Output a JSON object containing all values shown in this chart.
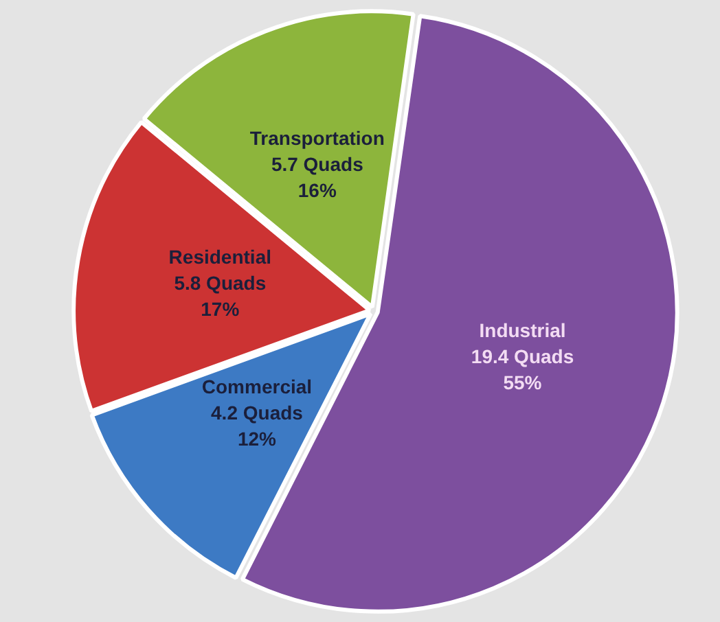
{
  "chart_data": {
    "type": "pie",
    "categories": [
      "Industrial",
      "Commercial",
      "Residential",
      "Transportation"
    ],
    "values": [
      19.4,
      4.2,
      5.8,
      5.7
    ],
    "colors": [
      "#7d4f9e",
      "#3d7ac4",
      "#cc3333",
      "#8db53c"
    ],
    "value_labels": [
      "19.4 Quads\n55%",
      "4.2 Quads\n12%",
      "5.8 Quads\n17%",
      "5.7 Quads\n16%"
    ],
    "legend": false
  }
}
